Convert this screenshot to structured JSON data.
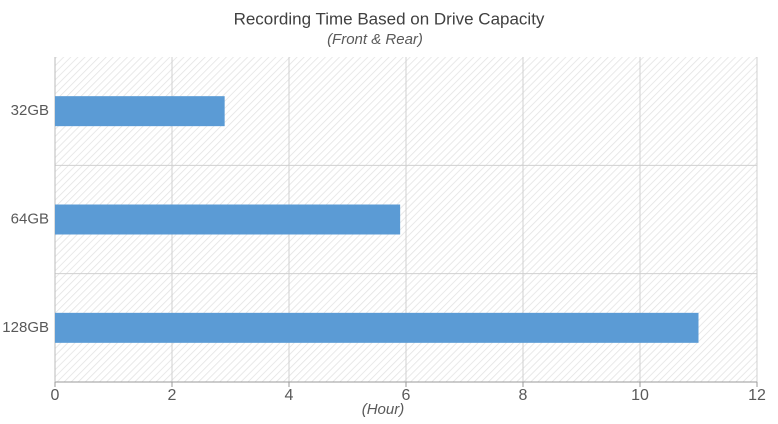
{
  "chart_data": {
    "type": "barh",
    "title": "Recording Time Based on Drive Capacity",
    "subtitle": "(Front & Rear)",
    "x_label": "(Hour)",
    "categories": [
      "32GB",
      "64GB",
      "128GB"
    ],
    "values": [
      2.9,
      5.9,
      11
    ],
    "color": "#5b9bd5",
    "xlim": [
      0,
      12
    ],
    "xticks": [
      0,
      2,
      4,
      6,
      8,
      10,
      12
    ],
    "grid": true
  }
}
